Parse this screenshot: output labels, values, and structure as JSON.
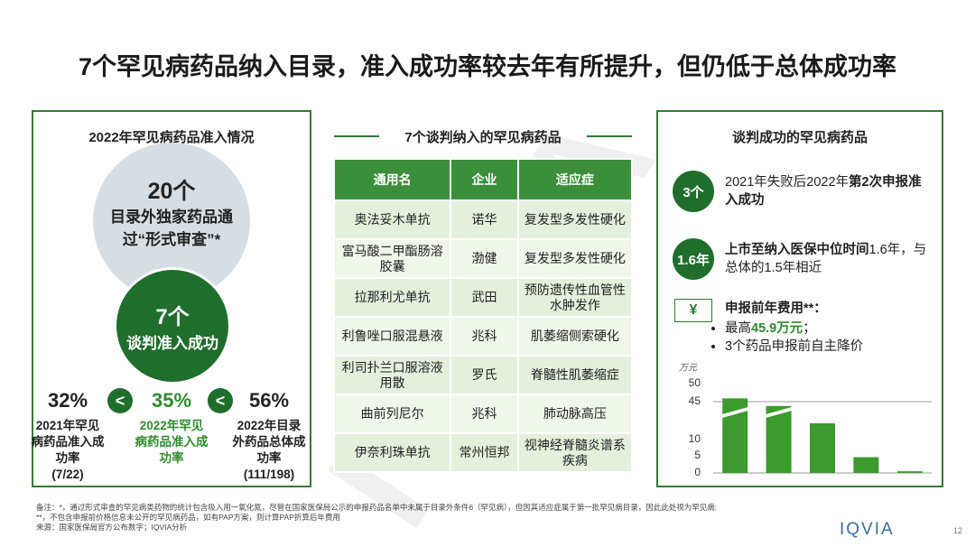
{
  "title": "7个罕见病药品纳入目录，准入成功率较去年有所提升，但仍低于总体成功率",
  "watermark": "IQVIA",
  "left_panel": {
    "heading": "2022年罕见病药品准入情况",
    "reviewed": {
      "count": "20个",
      "label": "目录外独家药品通过“形式审查”*"
    },
    "approved": {
      "count": "7个",
      "label": "谈判准入成功"
    },
    "rates": [
      {
        "value": "32%",
        "label": "2021年罕见病药品准入成功率",
        "note": "(7/22)"
      },
      {
        "value": "35%",
        "label": "2022年罕见病药品准入成功率"
      },
      {
        "value": "56%",
        "label": "2022年目录外药品总体成功率",
        "note": "(111/198)"
      }
    ],
    "comparators": [
      "<",
      "<"
    ]
  },
  "middle_panel": {
    "heading": "7个谈判纳入的罕见病药品",
    "table": {
      "header": [
        "通用名",
        "企业",
        "适应症"
      ],
      "rows": [
        [
          "奥法妥木单抗",
          "诺华",
          "复发型多发性硬化"
        ],
        [
          "富马酸二甲酯肠溶胶囊",
          "渤健",
          "复发型多发性硬化"
        ],
        [
          "拉那利尤单抗",
          "武田",
          "预防遗传性血管性水肿发作"
        ],
        [
          "利鲁唑口服混悬液",
          "兆科",
          "肌萎缩侧索硬化"
        ],
        [
          "利司扑兰口服溶液用散",
          "罗氏",
          "脊髓性肌萎缩症"
        ],
        [
          "曲前列尼尔",
          "兆科",
          "肺动脉高压"
        ],
        [
          "伊奈利珠单抗",
          "常州恒邦",
          "视神经脊髓炎谱系疾病"
        ]
      ]
    }
  },
  "right_panel": {
    "heading": "谈判成功的罕见病药品",
    "points": [
      {
        "badge": "3个",
        "text": [
          {
            "text": "2021年失败后2022年"
          },
          {
            "text": "第2次申报准入成功",
            "bold": true
          }
        ]
      },
      {
        "badge": "1.6年",
        "text": [
          {
            "text": "上市至纳入医保中位时间",
            "bold": true
          },
          {
            "text": "1.6年，与总体的1.5年相近"
          }
        ]
      }
    ],
    "cost": {
      "badge": "¥",
      "heading": "申报前年费用**：",
      "bullets": [
        [
          {
            "text": "最高"
          },
          {
            "text": "45.9万元",
            "bold": true,
            "highlight": true
          },
          {
            "text": "；"
          }
        ],
        [
          {
            "text": "3个药品申报前自主降价"
          }
        ]
      ]
    }
  },
  "chart_data": {
    "type": "bar",
    "y_unit": "万元",
    "categories": [
      null,
      null,
      null,
      null,
      null
    ],
    "values": [
      45.9,
      41,
      25,
      4.6,
      0.5
    ],
    "ylim": [
      0,
      50
    ],
    "yticks": [
      0,
      5,
      10,
      45,
      50
    ],
    "axis_break": [
      10,
      45
    ],
    "color": "#3c9a2e"
  },
  "footnotes": [
    "备注：*，通过形式审查的罕见病类药物的统计包含吸入用一氧化氮，尽管在国家医保局公示的申报药品名单中未属于目录外条件6（罕见病），但因其适应症属于第一批罕见病目录，因此此处视为罕见病;",
    "**，不包含申报前价格信息未公开的罕见病药品，如有PAP方案，则计算PAP折算后年费用",
    "来源：国家医保局官方公布数字；IQVIA分析"
  ],
  "logo": "IQVIA",
  "page_number": "12"
}
